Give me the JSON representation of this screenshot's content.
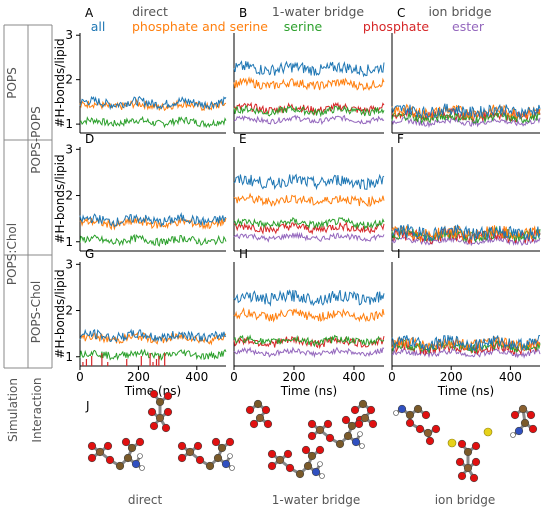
{
  "titles": {
    "col_headers": [
      "direct",
      "1-water bridge",
      "ion bridge"
    ],
    "bottom_labels": [
      "direct",
      "1-water bridge",
      "ion bridge"
    ],
    "panel_letters": [
      "A",
      "B",
      "C",
      "D",
      "E",
      "F",
      "G",
      "H",
      "I"
    ],
    "image_letter": "J",
    "ylabel": "#H-bonds/lipid",
    "xlabel": "Time (ns)",
    "row_group_outer": [
      "POPS",
      "POPS:Chol"
    ],
    "row_group_inner": [
      "POPS-POPS",
      "POPS-Chol"
    ],
    "bottom_side_labels": [
      "Simulation",
      "Interaction"
    ]
  },
  "legend": [
    {
      "name": "all",
      "color": "#1f77b4"
    },
    {
      "name": "phosphate and serine",
      "color": "#ff7f0e"
    },
    {
      "name": "serine",
      "color": "#2ca02c"
    },
    {
      "name": "phosphate",
      "color": "#d62728"
    },
    {
      "name": "ester",
      "color": "#9467bd"
    }
  ],
  "axes": {
    "xticks": [
      "0",
      "200",
      "400"
    ],
    "yticks": [
      "1",
      "2",
      "3"
    ]
  },
  "chart_data": {
    "type": "line",
    "xlabel": "Time (ns)",
    "ylabel": "#H-bonds/lipid",
    "xlim": [
      0,
      500
    ],
    "ylim": [
      0.8,
      3.05
    ],
    "panels": [
      {
        "id": "A",
        "series": [
          {
            "name": "all",
            "mean": 1.48,
            "noise": 0.1
          },
          {
            "name": "phosphate and serine",
            "mean": 1.42,
            "noise": 0.09
          },
          {
            "name": "serine",
            "mean": 1.05,
            "noise": 0.08
          }
        ]
      },
      {
        "id": "B",
        "series": [
          {
            "name": "all",
            "mean": 2.25,
            "noise": 0.13
          },
          {
            "name": "phosphate and serine",
            "mean": 1.9,
            "noise": 0.1
          },
          {
            "name": "serine",
            "mean": 1.3,
            "noise": 0.08
          },
          {
            "name": "phosphate",
            "mean": 1.35,
            "noise": 0.09
          },
          {
            "name": "ester",
            "mean": 1.1,
            "noise": 0.06
          }
        ]
      },
      {
        "id": "C",
        "series": [
          {
            "name": "all",
            "mean": 1.3,
            "noise": 0.13
          },
          {
            "name": "phosphate and serine",
            "mean": 1.28,
            "noise": 0.12
          },
          {
            "name": "serine",
            "mean": 1.15,
            "noise": 0.1
          },
          {
            "name": "phosphate",
            "mean": 1.2,
            "noise": 0.12
          },
          {
            "name": "ester",
            "mean": 1.05,
            "noise": 0.06
          }
        ]
      },
      {
        "id": "D",
        "series": [
          {
            "name": "all",
            "mean": 1.47,
            "noise": 0.1
          },
          {
            "name": "phosphate and serine",
            "mean": 1.4,
            "noise": 0.09
          },
          {
            "name": "serine",
            "mean": 1.03,
            "noise": 0.08
          }
        ]
      },
      {
        "id": "E",
        "series": [
          {
            "name": "all",
            "mean": 2.3,
            "noise": 0.13
          },
          {
            "name": "phosphate and serine",
            "mean": 1.9,
            "noise": 0.1
          },
          {
            "name": "serine",
            "mean": 1.4,
            "noise": 0.08
          },
          {
            "name": "phosphate",
            "mean": 1.3,
            "noise": 0.09
          },
          {
            "name": "ester",
            "mean": 1.1,
            "noise": 0.06
          }
        ]
      },
      {
        "id": "F",
        "series": [
          {
            "name": "all",
            "mean": 1.2,
            "noise": 0.15
          },
          {
            "name": "phosphate and serine",
            "mean": 1.18,
            "noise": 0.14
          },
          {
            "name": "serine",
            "mean": 1.15,
            "noise": 0.12
          },
          {
            "name": "phosphate",
            "mean": 1.12,
            "noise": 0.13
          },
          {
            "name": "ester",
            "mean": 1.02,
            "noise": 0.06
          }
        ]
      },
      {
        "id": "G",
        "series": [
          {
            "name": "all",
            "mean": 1.45,
            "noise": 0.1
          },
          {
            "name": "phosphate and serine",
            "mean": 1.4,
            "noise": 0.09
          },
          {
            "name": "serine",
            "mean": 1.05,
            "noise": 0.08
          }
        ]
      },
      {
        "id": "H",
        "series": [
          {
            "name": "all",
            "mean": 2.28,
            "noise": 0.13
          },
          {
            "name": "phosphate and serine",
            "mean": 1.9,
            "noise": 0.1
          },
          {
            "name": "serine",
            "mean": 1.35,
            "noise": 0.08
          },
          {
            "name": "phosphate",
            "mean": 1.32,
            "noise": 0.09
          },
          {
            "name": "ester",
            "mean": 1.1,
            "noise": 0.06
          }
        ]
      },
      {
        "id": "I",
        "series": [
          {
            "name": "all",
            "mean": 1.3,
            "noise": 0.13
          },
          {
            "name": "phosphate and serine",
            "mean": 1.28,
            "noise": 0.12
          },
          {
            "name": "serine",
            "mean": 1.22,
            "noise": 0.1
          },
          {
            "name": "phosphate",
            "mean": 1.2,
            "noise": 0.12
          },
          {
            "name": "ester",
            "mean": 1.08,
            "noise": 0.06
          }
        ]
      }
    ]
  }
}
